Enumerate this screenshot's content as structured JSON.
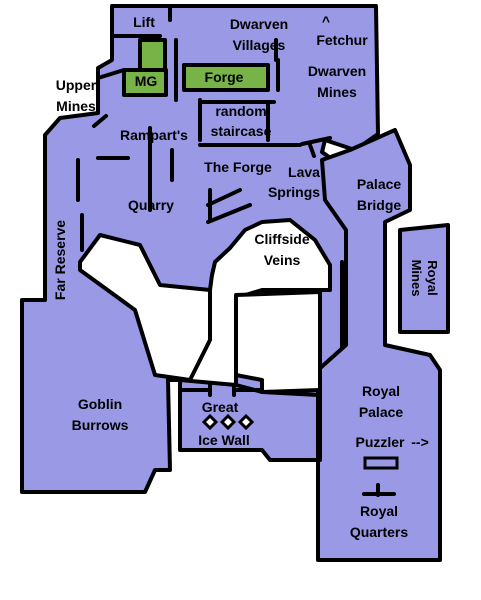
{
  "colors": {
    "region": "#9999e6",
    "highlight": "#77b347",
    "outline": "#000000",
    "npc_fetchur": "#e6e600",
    "npc_puzzler": "#e600e6",
    "background": "#ffffff"
  },
  "labels": {
    "lift": "Lift",
    "dwarven_villages_1": "Dwarven",
    "dwarven_villages_2": "Villages",
    "fetchur": "Fetchur",
    "fetchur_arrow": "^",
    "mg": "MG",
    "forge": "Forge",
    "dwarven_mines_1": "Dwarven",
    "dwarven_mines_2": "Mines",
    "upper_mines_1": "Upper",
    "upper_mines_2": "Mines",
    "random_staircase_1": "random",
    "random_staircase_2": "staircase",
    "ramparts": "Rampart's",
    "the_forge": "The Forge",
    "lava_springs_1": "Lava",
    "lava_springs_2": "Springs",
    "palace_bridge_1": "Palace",
    "palace_bridge_2": "Bridge",
    "quarry": "Quarry",
    "far_reserve": "Far Reserve",
    "cliffside_veins_1": "Cliffside",
    "cliffside_veins_2": "Veins",
    "royal_mines_1": "Royal",
    "royal_mines_2": "Mines",
    "royal_palace_1": "Royal",
    "royal_palace_2": "Palace",
    "goblin_burrows_1": "Goblin",
    "goblin_burrows_2": "Burrows",
    "great_ice_wall_1": "Great",
    "great_ice_wall_2": "Ice Wall",
    "puzzler": "Puzzler",
    "puzzler_arrow": "-->",
    "royal_quarters_1": "Royal",
    "royal_quarters_2": "Quarters"
  }
}
